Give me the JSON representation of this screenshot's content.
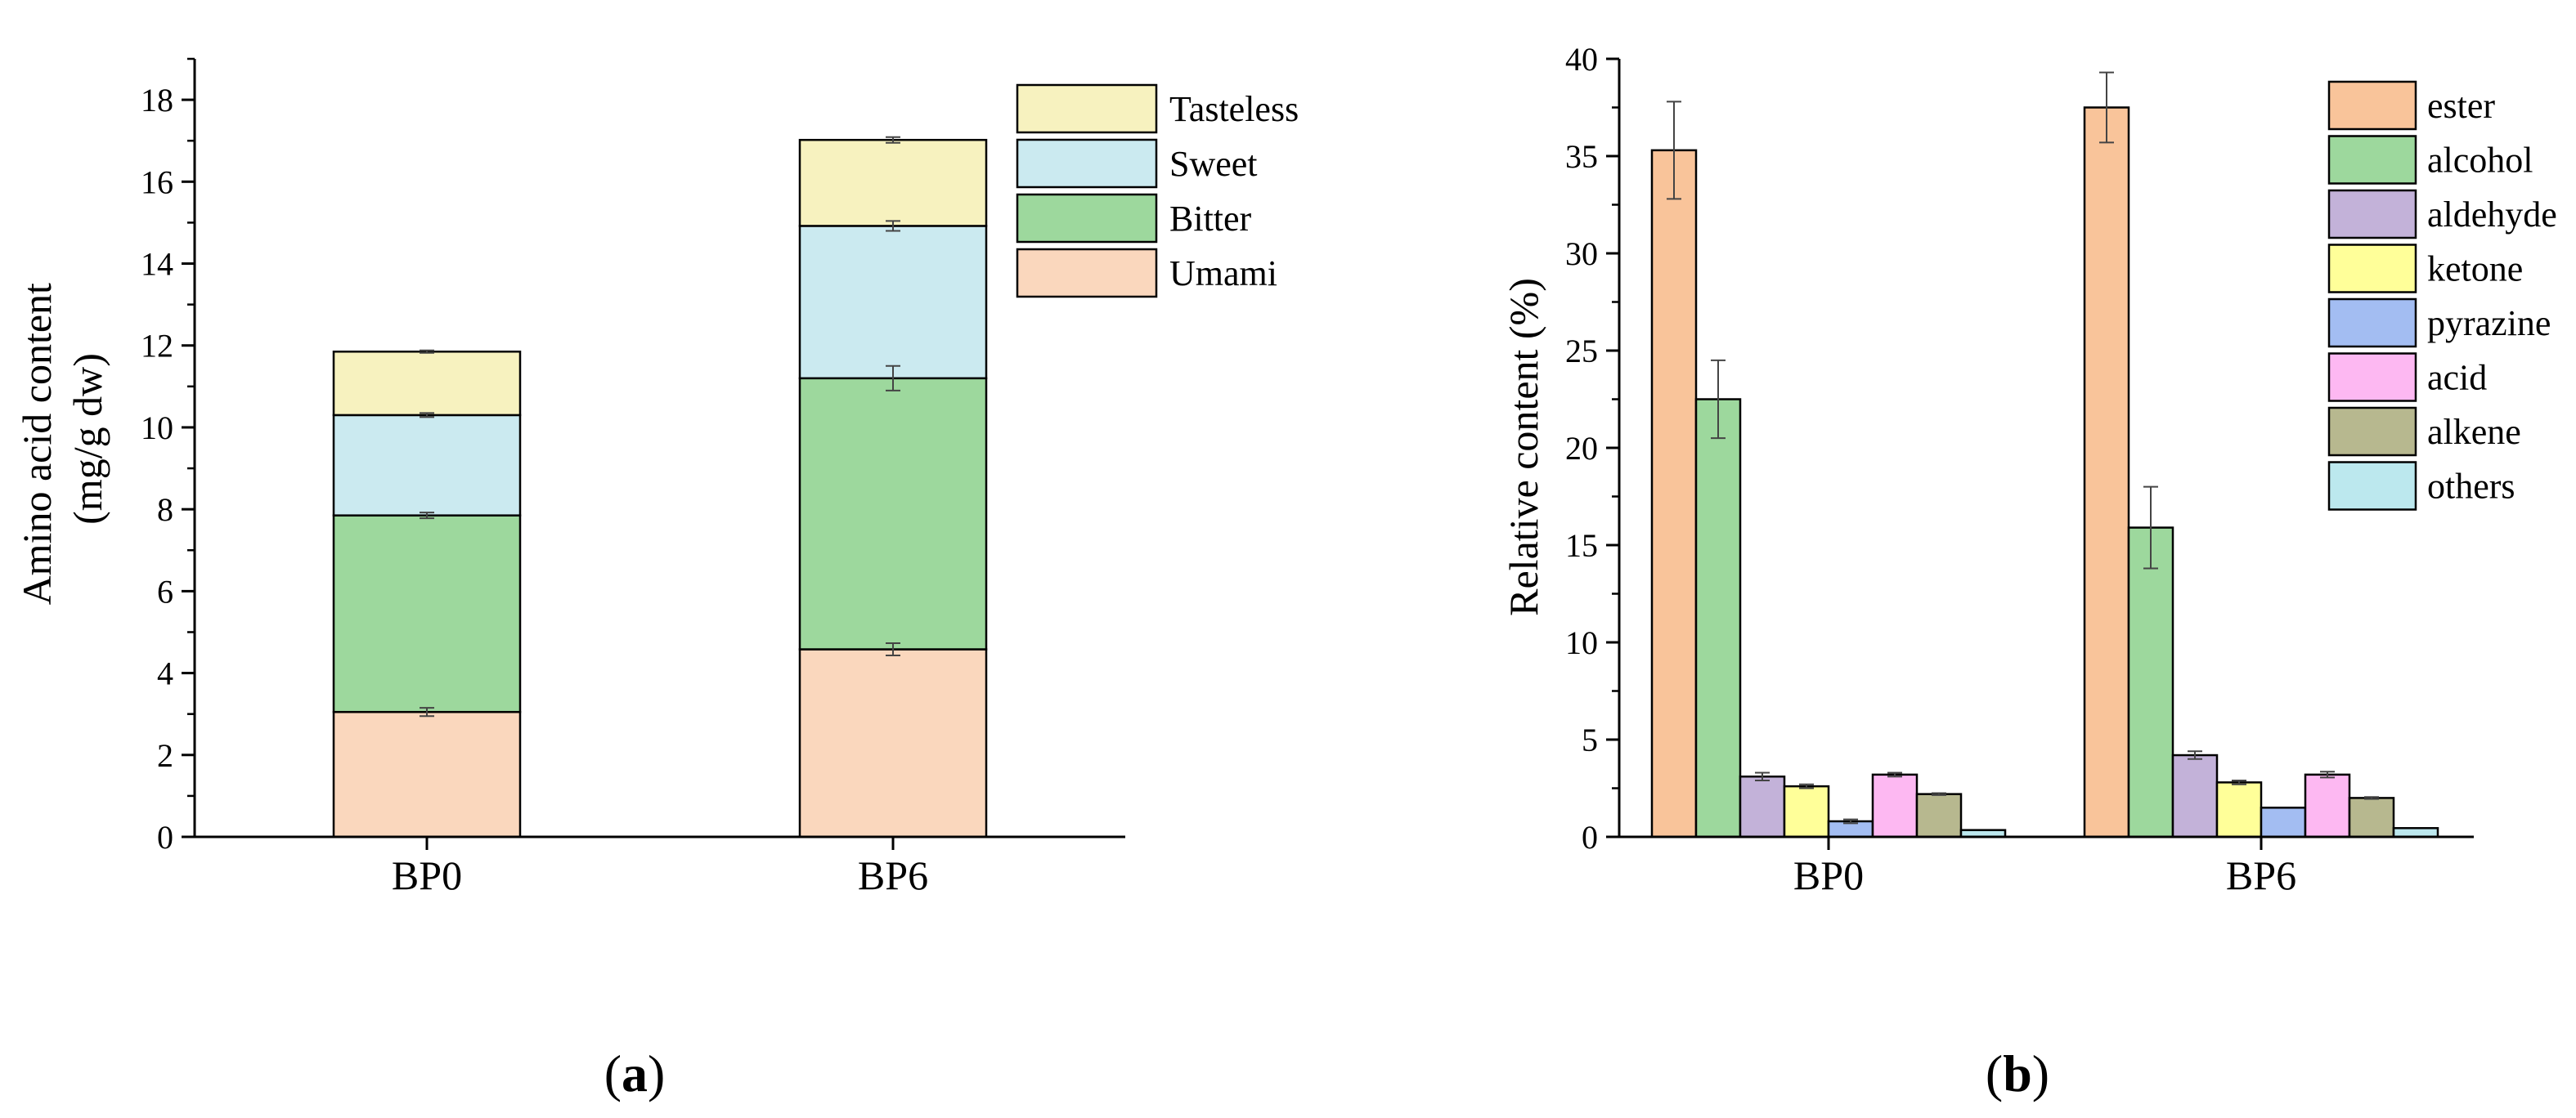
{
  "chart_data": [
    {
      "id": "a",
      "type": "stacked-bar",
      "panel_label": "a",
      "ylabel_line1": "Amino acid content",
      "ylabel_line2": "(mg/g dw)",
      "ylim": [
        0,
        19
      ],
      "yticks": [
        0,
        2,
        4,
        6,
        8,
        10,
        12,
        14,
        16,
        18
      ],
      "categories": [
        "BP0",
        "BP6"
      ],
      "series": [
        {
          "name": "Umami",
          "color": "#FAD7BD",
          "values": [
            3.05,
            4.58
          ],
          "errors": [
            0.1,
            0.15
          ]
        },
        {
          "name": "Bitter",
          "color": "#9DD89D",
          "values": [
            4.8,
            6.62
          ],
          "errors": [
            0.07,
            0.3
          ]
        },
        {
          "name": "Sweet",
          "color": "#CBEAF0",
          "values": [
            2.45,
            3.72
          ],
          "errors": [
            0.05,
            0.12
          ]
        },
        {
          "name": "Tasteless",
          "color": "#F7F2BF",
          "values": [
            1.55,
            2.1
          ],
          "errors": [
            0.03,
            0.07
          ]
        }
      ],
      "legend_order": [
        "Tasteless",
        "Sweet",
        "Bitter",
        "Umami"
      ]
    },
    {
      "id": "b",
      "type": "grouped-bar",
      "panel_label": "b",
      "ylabel": "Relative content (%)",
      "ylim": [
        0,
        40
      ],
      "yticks": [
        0,
        5,
        10,
        15,
        20,
        25,
        30,
        35,
        40
      ],
      "categories": [
        "BP0",
        "BP6"
      ],
      "series": [
        {
          "name": "ester",
          "color": "#F9C49A",
          "values": [
            35.3,
            37.5
          ],
          "errors": [
            2.5,
            1.8
          ]
        },
        {
          "name": "alcohol",
          "color": "#9DD89D",
          "values": [
            22.5,
            15.9
          ],
          "errors": [
            2.0,
            2.1
          ]
        },
        {
          "name": "aldehyde",
          "color": "#C3B2D9",
          "values": [
            3.1,
            4.2
          ],
          "errors": [
            0.2,
            0.2
          ]
        },
        {
          "name": "ketone",
          "color": "#FFFF99",
          "values": [
            2.6,
            2.8
          ],
          "errors": [
            0.1,
            0.1
          ]
        },
        {
          "name": "pyrazine",
          "color": "#A3BDF2",
          "values": [
            0.8,
            1.5
          ],
          "errors": [
            0.1,
            0.0
          ]
        },
        {
          "name": "acid",
          "color": "#FDB8F2",
          "values": [
            3.2,
            3.2
          ],
          "errors": [
            0.1,
            0.15
          ]
        },
        {
          "name": "alkene",
          "color": "#B7B88F",
          "values": [
            2.2,
            2.0
          ],
          "errors": [
            0.05,
            0.05
          ]
        },
        {
          "name": "others",
          "color": "#BCE8EE",
          "values": [
            0.35,
            0.45
          ],
          "errors": [
            0.0,
            0.0
          ]
        }
      ]
    }
  ]
}
